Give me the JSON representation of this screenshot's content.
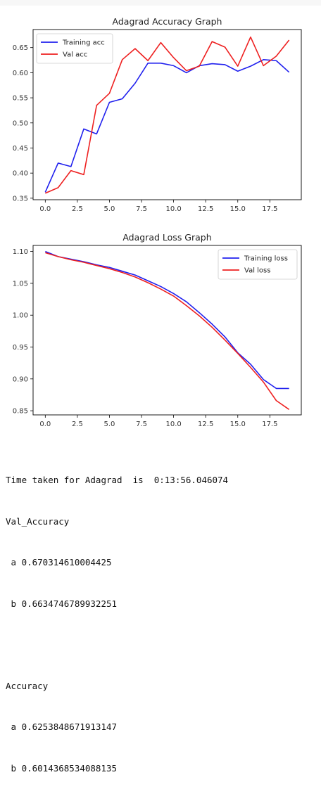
{
  "charts": [
    {
      "type": "line",
      "title": "Adagrad Accuracy Graph",
      "xlim": [
        -0.95,
        19.95
      ],
      "ylim": [
        0.347,
        0.686
      ],
      "xticks": [
        0.0,
        2.5,
        5.0,
        7.5,
        10.0,
        12.5,
        15.0,
        17.5
      ],
      "xtick_labels": [
        "0.0",
        "2.5",
        "5.0",
        "7.5",
        "10.0",
        "12.5",
        "15.0",
        "17.5"
      ],
      "yticks": [
        0.35,
        0.4,
        0.45,
        0.5,
        0.55,
        0.6,
        0.65
      ],
      "ytick_labels": [
        "0.35",
        "0.40",
        "0.45",
        "0.50",
        "0.55",
        "0.60",
        "0.65"
      ],
      "legend_loc": "upper-left",
      "grid": false,
      "x": [
        0,
        1,
        2,
        3,
        4,
        5,
        6,
        7,
        8,
        9,
        10,
        11,
        12,
        13,
        14,
        15,
        16,
        17,
        18,
        19
      ],
      "series": [
        {
          "name": "Training acc",
          "color": "#2020ee",
          "values": [
            0.362,
            0.42,
            0.413,
            0.488,
            0.478,
            0.541,
            0.548,
            0.579,
            0.619,
            0.619,
            0.614,
            0.6,
            0.614,
            0.618,
            0.616,
            0.603,
            0.613,
            0.626,
            0.624,
            0.601
          ]
        },
        {
          "name": "Val acc",
          "color": "#ee2020",
          "values": [
            0.36,
            0.371,
            0.405,
            0.397,
            0.535,
            0.559,
            0.626,
            0.648,
            0.624,
            0.66,
            0.63,
            0.604,
            0.613,
            0.662,
            0.651,
            0.613,
            0.671,
            0.614,
            0.633,
            0.665
          ]
        }
      ]
    },
    {
      "type": "line",
      "title": "Adagrad Loss Graph",
      "xlim": [
        -0.95,
        19.95
      ],
      "ylim": [
        0.8435,
        1.1095
      ],
      "xticks": [
        0.0,
        2.5,
        5.0,
        7.5,
        10.0,
        12.5,
        15.0,
        17.5
      ],
      "xtick_labels": [
        "0.0",
        "2.5",
        "5.0",
        "7.5",
        "10.0",
        "12.5",
        "15.0",
        "17.5"
      ],
      "yticks": [
        0.85,
        0.9,
        0.95,
        1.0,
        1.05,
        1.1
      ],
      "ytick_labels": [
        "0.85",
        "0.90",
        "0.95",
        "1.00",
        "1.05",
        "1.10"
      ],
      "legend_loc": "upper-right",
      "grid": false,
      "x": [
        0,
        1,
        2,
        3,
        4,
        5,
        6,
        7,
        8,
        9,
        10,
        11,
        12,
        13,
        14,
        15,
        16,
        17,
        18,
        19
      ],
      "series": [
        {
          "name": "Training loss",
          "color": "#2020ee",
          "values": [
            1.1,
            1.092,
            1.088,
            1.084,
            1.079,
            1.075,
            1.069,
            1.063,
            1.054,
            1.045,
            1.034,
            1.021,
            1.004,
            0.986,
            0.966,
            0.941,
            0.923,
            0.899,
            0.885,
            0.885
          ]
        },
        {
          "name": "Val loss",
          "color": "#ee2020",
          "values": [
            1.098,
            1.092,
            1.087,
            1.083,
            1.078,
            1.073,
            1.067,
            1.06,
            1.051,
            1.041,
            1.03,
            1.015,
            0.999,
            0.981,
            0.961,
            0.94,
            0.918,
            0.895,
            0.866,
            0.852
          ]
        }
      ]
    }
  ],
  "output": {
    "time_line": "Time taken for Adagrad  is  0:13:56.046074",
    "val_header": "Val_Accuracy",
    "val_a": " a 0.670314610004425",
    "val_b": " b 0.6634746789932251",
    "blank": "",
    "acc_header": "Accuracy",
    "acc_a": " a 0.6253848671913147",
    "acc_b": " b 0.6014368534088135"
  }
}
